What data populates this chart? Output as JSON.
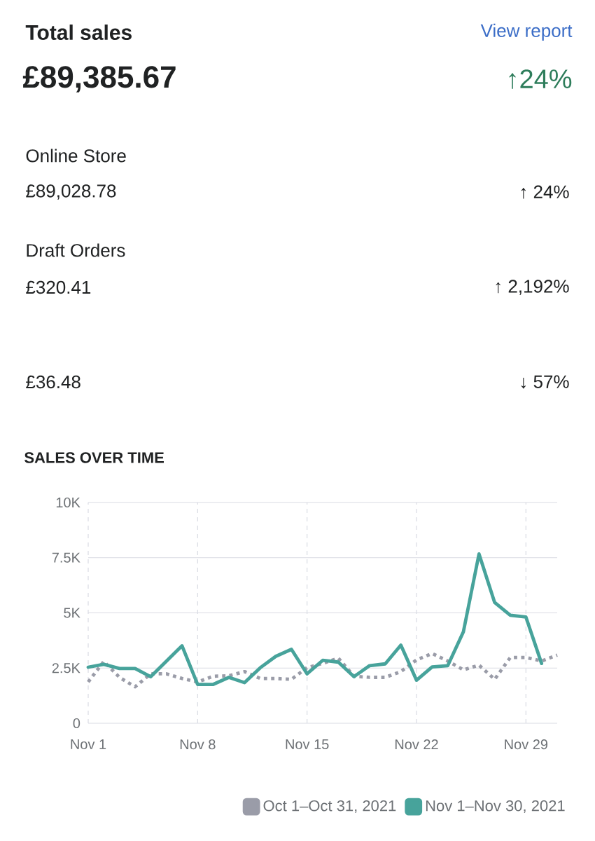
{
  "chart_data": {
    "type": "line",
    "title": "SALES OVER TIME",
    "annotations": [
      "Total sales",
      "View report",
      "£89,385.67",
      "↑24%",
      "Online Store",
      "£89,028.78",
      "↑ 24%",
      "Draft Orders",
      "£320.41",
      "↑ 2,192%",
      "£36.48",
      "↓ 57%"
    ],
    "categories": [
      "Nov 1",
      null,
      null,
      null,
      null,
      null,
      null,
      "Nov 8",
      null,
      null,
      null,
      null,
      null,
      null,
      "Nov 15",
      null,
      null,
      null,
      null,
      null,
      null,
      "Nov 22",
      null,
      null,
      null,
      null,
      null,
      null,
      "Nov 29",
      null,
      null
    ],
    "series": [
      {
        "name": "Oct 1–Oct 31, 2021",
        "color": "#9a9ca8",
        "line_style": "dotted",
        "values": [
          1870,
          2800,
          2080,
          1650,
          2240,
          2240,
          2030,
          1870,
          2130,
          2150,
          2340,
          2030,
          2030,
          1990,
          2520,
          2710,
          2950,
          2130,
          2080,
          2080,
          2340,
          2870,
          3160,
          2820,
          2420,
          2630,
          1990,
          2980,
          2980,
          2820,
          3090
        ]
      },
      {
        "name": "Nov 1–Nov 30, 2021",
        "color": "#47a39b",
        "line_style": "solid",
        "values": [
          2540,
          2670,
          2480,
          2480,
          2110,
          2810,
          3510,
          1760,
          1760,
          2080,
          1840,
          2510,
          3030,
          3350,
          2240,
          2850,
          2770,
          2110,
          2610,
          2690,
          3540,
          1950,
          2550,
          2610,
          4140,
          7670,
          5470,
          4890,
          4810,
          2710,
          null
        ]
      }
    ],
    "ylim": [
      0,
      10000
    ],
    "yticks": [
      {
        "value": 0,
        "label": "0"
      },
      {
        "value": 2500,
        "label": "2.5K"
      },
      {
        "value": 5000,
        "label": "5K"
      },
      {
        "value": 7500,
        "label": "7.5K"
      },
      {
        "value": 10000,
        "label": "10K"
      }
    ],
    "grid": true,
    "legend": "bottom right",
    "marker": "none"
  }
}
